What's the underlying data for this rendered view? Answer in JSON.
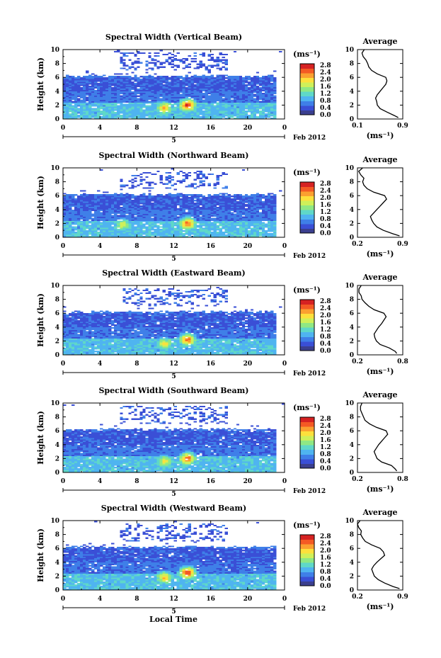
{
  "figure": {
    "date_label": "Feb 2012",
    "xlabel": "Local Time",
    "ylabel": "Height (km)",
    "avg_title": "Average",
    "units": "(ms⁻¹)",
    "units_avg": "(ms⁻¹)",
    "date_tick": "5"
  },
  "colorscale": {
    "ticks": [
      "2.8",
      "2.4",
      "2.0",
      "1.6",
      "1.2",
      "0.8",
      "0.4",
      "0.0"
    ],
    "colors": [
      "#3b3f8f",
      "#3a4fd6",
      "#3f7fe8",
      "#4fb4f0",
      "#5fd8c8",
      "#8fe884",
      "#cff05a",
      "#fde03c",
      "#fba030",
      "#f45a24",
      "#d62222"
    ]
  },
  "chart_data": [
    {
      "type": "heatmap",
      "title": "Spectral Width (Vertical Beam)",
      "x_ticks": [
        "0",
        "4",
        "8",
        "12",
        "16",
        "20",
        "0"
      ],
      "y_ticks": [
        "0",
        "2",
        "4",
        "6",
        "8",
        "10"
      ],
      "xlim": [
        0,
        24
      ],
      "ylim": [
        0,
        10
      ],
      "cloud_top_km": 6.2,
      "hotspots": [
        {
          "x": 13.5,
          "y": 2.0,
          "value": 2.8
        },
        {
          "x": 11.0,
          "y": 1.6,
          "value": 2.2
        }
      ],
      "average_profile": {
        "type": "line",
        "xlim": [
          0.1,
          0.9
        ],
        "x_ticks": [
          "0.1",
          "0.9"
        ],
        "y_ticks": [
          "0",
          "2",
          "4",
          "6",
          "8",
          "10"
        ],
        "height_km": [
          0.2,
          0.5,
          1,
          1.5,
          2,
          2.5,
          3,
          3.5,
          4,
          4.5,
          5,
          5.5,
          6,
          6.5,
          7,
          7.5,
          8,
          8.5,
          9,
          9.5,
          10
        ],
        "value": [
          0.82,
          0.75,
          0.62,
          0.5,
          0.45,
          0.44,
          0.42,
          0.45,
          0.5,
          0.55,
          0.6,
          0.62,
          0.6,
          0.45,
          0.35,
          0.3,
          0.28,
          0.25,
          0.2,
          0.18,
          0.22
        ]
      }
    },
    {
      "type": "heatmap",
      "title": "Spectral Width (Northward Beam)",
      "x_ticks": [
        "0",
        "4",
        "8",
        "12",
        "16",
        "20",
        "0"
      ],
      "y_ticks": [
        "0",
        "2",
        "4",
        "6",
        "8",
        "10"
      ],
      "xlim": [
        0,
        24
      ],
      "ylim": [
        0,
        10
      ],
      "cloud_top_km": 6.2,
      "hotspots": [
        {
          "x": 13.5,
          "y": 2.0,
          "value": 2.6
        },
        {
          "x": 6.5,
          "y": 1.8,
          "value": 1.8
        }
      ],
      "average_profile": {
        "type": "line",
        "xlim": [
          0.2,
          0.9
        ],
        "x_ticks": [
          "0.2",
          "0.9"
        ],
        "y_ticks": [
          "0",
          "2",
          "4",
          "6",
          "8",
          "10"
        ],
        "height_km": [
          0.2,
          0.5,
          1,
          1.5,
          2,
          2.5,
          3,
          3.5,
          4,
          4.5,
          5,
          5.5,
          6,
          6.5,
          7,
          7.5,
          8,
          8.5,
          9,
          9.5,
          10
        ],
        "value": [
          0.85,
          0.75,
          0.6,
          0.5,
          0.45,
          0.42,
          0.4,
          0.45,
          0.5,
          0.55,
          0.6,
          0.65,
          0.62,
          0.45,
          0.35,
          0.3,
          0.28,
          0.3,
          0.25,
          0.22,
          0.28
        ]
      }
    },
    {
      "type": "heatmap",
      "title": "Spectral Width (Eastward Beam)",
      "x_ticks": [
        "0",
        "4",
        "8",
        "12",
        "16",
        "20",
        "0"
      ],
      "y_ticks": [
        "0",
        "2",
        "4",
        "6",
        "8",
        "10"
      ],
      "xlim": [
        0,
        24
      ],
      "ylim": [
        0,
        10
      ],
      "cloud_top_km": 6.2,
      "hotspots": [
        {
          "x": 13.5,
          "y": 2.2,
          "value": 2.6
        },
        {
          "x": 11.0,
          "y": 1.6,
          "value": 2.0
        }
      ],
      "average_profile": {
        "type": "line",
        "xlim": [
          0.2,
          0.8
        ],
        "x_ticks": [
          "0.2",
          "0.8"
        ],
        "y_ticks": [
          "0",
          "2",
          "4",
          "6",
          "8",
          "10"
        ],
        "height_km": [
          0.2,
          0.5,
          1,
          1.5,
          2,
          2.5,
          3,
          3.5,
          4,
          4.5,
          5,
          5.5,
          6,
          6.5,
          7,
          7.5,
          8,
          8.5,
          9,
          9.5,
          10
        ],
        "value": [
          0.72,
          0.7,
          0.62,
          0.5,
          0.45,
          0.43,
          0.42,
          0.45,
          0.48,
          0.52,
          0.55,
          0.58,
          0.55,
          0.42,
          0.35,
          0.3,
          0.26,
          0.25,
          0.22,
          0.22,
          0.25
        ]
      }
    },
    {
      "type": "heatmap",
      "title": "Spectral Width (Southward Beam)",
      "x_ticks": [
        "0",
        "4",
        "8",
        "12",
        "16",
        "20",
        "0"
      ],
      "y_ticks": [
        "0",
        "2",
        "4",
        "6",
        "8",
        "10"
      ],
      "xlim": [
        0,
        24
      ],
      "ylim": [
        0,
        10
      ],
      "cloud_top_km": 6.2,
      "hotspots": [
        {
          "x": 13.5,
          "y": 2.0,
          "value": 2.6
        },
        {
          "x": 11.0,
          "y": 1.6,
          "value": 2.0
        }
      ],
      "average_profile": {
        "type": "line",
        "xlim": [
          0.2,
          0.8
        ],
        "x_ticks": [
          "0.2",
          "0.8"
        ],
        "y_ticks": [
          "0",
          "2",
          "4",
          "6",
          "8",
          "10"
        ],
        "height_km": [
          0.2,
          0.5,
          1,
          1.5,
          2,
          2.5,
          3,
          3.5,
          4,
          4.5,
          5,
          5.5,
          6,
          6.5,
          7,
          7.5,
          8,
          8.5,
          9,
          9.5,
          10
        ],
        "value": [
          0.72,
          0.7,
          0.65,
          0.52,
          0.46,
          0.44,
          0.42,
          0.45,
          0.48,
          0.52,
          0.56,
          0.6,
          0.58,
          0.45,
          0.36,
          0.3,
          0.28,
          0.26,
          0.24,
          0.24,
          0.26
        ]
      }
    },
    {
      "type": "heatmap",
      "title": "Spectral Width (Westward Beam)",
      "x_ticks": [
        "0",
        "4",
        "8",
        "12",
        "16",
        "20",
        "0"
      ],
      "y_ticks": [
        "0",
        "2",
        "4",
        "6",
        "8",
        "10"
      ],
      "xlim": [
        0,
        24
      ],
      "ylim": [
        0,
        10
      ],
      "cloud_top_km": 6.2,
      "hotspots": [
        {
          "x": 13.5,
          "y": 2.5,
          "value": 2.8
        },
        {
          "x": 11.0,
          "y": 1.8,
          "value": 2.2
        }
      ],
      "average_profile": {
        "type": "line",
        "xlim": [
          0.2,
          0.9
        ],
        "x_ticks": [
          "0.2",
          "0.9"
        ],
        "y_ticks": [
          "0",
          "2",
          "4",
          "6",
          "8",
          "10"
        ],
        "height_km": [
          0.2,
          0.5,
          1,
          1.5,
          2,
          2.5,
          3,
          3.5,
          4,
          4.5,
          5,
          5.5,
          6,
          6.5,
          7,
          7.5,
          8,
          8.5,
          9,
          9.5,
          10
        ],
        "value": [
          0.85,
          0.75,
          0.62,
          0.52,
          0.46,
          0.44,
          0.42,
          0.45,
          0.5,
          0.56,
          0.62,
          0.6,
          0.55,
          0.42,
          0.32,
          0.28,
          0.25,
          0.26,
          0.22,
          0.2,
          0.24
        ]
      }
    }
  ]
}
